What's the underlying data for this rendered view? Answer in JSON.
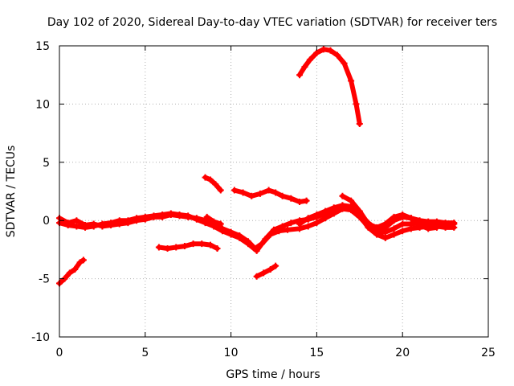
{
  "chart_data": {
    "type": "scatter",
    "title": "Day 102 of 2020, Sidereal Day-to-day VTEC variation (SDTVAR) for receiver ters",
    "xlabel": "GPS time / hours",
    "ylabel": "SDTVAR / TECUs",
    "xlim": [
      0,
      25
    ],
    "ylim": [
      -10,
      15
    ],
    "xticks": [
      "0",
      "5",
      "10",
      "15",
      "20",
      "25"
    ],
    "yticks": [
      "-10",
      "-5",
      "0",
      "5",
      "10",
      "15"
    ],
    "grid": true,
    "series_color": "#ff0000",
    "series": [
      {
        "name": "trace-a",
        "points": [
          [
            0,
            0.2
          ],
          [
            0.5,
            -0.2
          ],
          [
            1,
            0
          ],
          [
            1.5,
            -0.4
          ],
          [
            2,
            -0.3
          ],
          [
            2.5,
            -0.5
          ],
          [
            3,
            -0.4
          ],
          [
            3.5,
            -0.3
          ],
          [
            4,
            -0.2
          ],
          [
            4.5,
            0
          ],
          [
            5,
            0.1
          ],
          [
            5.5,
            0.3
          ],
          [
            6,
            0.3
          ],
          [
            6.5,
            0.5
          ],
          [
            7,
            0.4
          ],
          [
            7.5,
            0.3
          ],
          [
            8,
            0.2
          ],
          [
            8.5,
            0
          ],
          [
            9,
            -0.3
          ],
          [
            9.5,
            -0.7
          ],
          [
            10,
            -1
          ],
          [
            10.5,
            -1.3
          ],
          [
            11,
            -1.8
          ],
          [
            11.4,
            -2.4
          ],
          [
            11.8,
            -2
          ],
          [
            12.3,
            -1.2
          ],
          [
            12.8,
            -0.9
          ],
          [
            13.3,
            -0.8
          ],
          [
            14,
            -0.7
          ],
          [
            14.5,
            -0.5
          ],
          [
            15,
            -0.2
          ],
          [
            15.5,
            0.2
          ],
          [
            16,
            0.6
          ],
          [
            16.5,
            1
          ],
          [
            17,
            0.9
          ],
          [
            17.5,
            0.3
          ],
          [
            18,
            -0.5
          ],
          [
            18.5,
            -1
          ],
          [
            19,
            -1
          ],
          [
            19.5,
            -0.7
          ],
          [
            20,
            -0.3
          ],
          [
            20.5,
            -0.3
          ],
          [
            21,
            -0.2
          ],
          [
            21.5,
            -0.2
          ],
          [
            22,
            -0.4
          ],
          [
            22.5,
            -0.3
          ],
          [
            23,
            -0.3
          ]
        ]
      },
      {
        "name": "trace-b",
        "points": [
          [
            0,
            -0.2
          ],
          [
            0.5,
            -0.4
          ],
          [
            1,
            -0.5
          ],
          [
            1.5,
            -0.6
          ],
          [
            2,
            -0.5
          ],
          [
            2.5,
            -0.3
          ],
          [
            3,
            -0.2
          ],
          [
            3.5,
            0
          ],
          [
            4,
            0
          ],
          [
            4.5,
            0.2
          ],
          [
            5,
            0.3
          ],
          [
            5.5,
            0.4
          ],
          [
            6,
            0.5
          ],
          [
            6.5,
            0.6
          ],
          [
            7,
            0.5
          ],
          [
            7.5,
            0.4
          ],
          [
            8,
            0.1
          ],
          [
            8.5,
            -0.2
          ],
          [
            9,
            -0.5
          ],
          [
            9.5,
            -0.9
          ],
          [
            10,
            -1.2
          ],
          [
            10.5,
            -1.5
          ],
          [
            11,
            -2
          ],
          [
            11.5,
            -2.6
          ],
          [
            12,
            -1.6
          ],
          [
            12.5,
            -0.8
          ],
          [
            13,
            -0.5
          ],
          [
            13.5,
            -0.2
          ],
          [
            14,
            0
          ],
          [
            14.5,
            0.1
          ],
          [
            15,
            0.3
          ],
          [
            15.5,
            0.6
          ],
          [
            16,
            1
          ],
          [
            16.5,
            1.3
          ],
          [
            17,
            1.2
          ],
          [
            17.5,
            0.6
          ],
          [
            18,
            -0.2
          ],
          [
            18.5,
            -0.8
          ],
          [
            19,
            -0.6
          ],
          [
            19.5,
            0
          ],
          [
            20,
            0.3
          ],
          [
            20.5,
            0.2
          ],
          [
            21,
            0
          ],
          [
            21.5,
            -0.1
          ],
          [
            22,
            -0.1
          ],
          [
            22.5,
            -0.2
          ],
          [
            23,
            -0.2
          ]
        ]
      },
      {
        "name": "trace-c",
        "points": [
          [
            14,
            -0.3
          ],
          [
            14.5,
            0.2
          ],
          [
            15,
            0.5
          ],
          [
            15.5,
            0.8
          ],
          [
            16,
            1.1
          ],
          [
            16.5,
            1.3
          ],
          [
            17,
            1.1
          ],
          [
            17.5,
            0.4
          ],
          [
            18,
            -0.6
          ],
          [
            18.5,
            -1.2
          ],
          [
            19,
            -1.5
          ],
          [
            19.5,
            -1.2
          ],
          [
            20,
            -0.9
          ],
          [
            20.5,
            -0.7
          ],
          [
            21,
            -0.6
          ],
          [
            21.5,
            -0.5
          ],
          [
            22,
            -0.5
          ],
          [
            22.5,
            -0.6
          ],
          [
            23,
            -0.6
          ]
        ]
      },
      {
        "name": "trace-d",
        "points": [
          [
            16.5,
            2.1
          ],
          [
            17,
            1.7
          ],
          [
            17.5,
            0.8
          ],
          [
            18,
            -0.3
          ],
          [
            18.5,
            -0.6
          ],
          [
            19,
            -0.3
          ],
          [
            19.5,
            0.3
          ],
          [
            20,
            0.5
          ],
          [
            20.5,
            0.2
          ],
          [
            21,
            -0.4
          ],
          [
            21.5,
            -0.7
          ],
          [
            22,
            -0.6
          ]
        ]
      },
      {
        "name": "arc-high",
        "points": [
          [
            14,
            12.5
          ],
          [
            14.3,
            13.2
          ],
          [
            14.6,
            13.8
          ],
          [
            15,
            14.4
          ],
          [
            15.4,
            14.7
          ],
          [
            15.8,
            14.6
          ],
          [
            16.2,
            14.2
          ],
          [
            16.6,
            13.5
          ],
          [
            17,
            12
          ],
          [
            17.3,
            10
          ],
          [
            17.5,
            8.3
          ]
        ]
      },
      {
        "name": "segment-mid-a",
        "points": [
          [
            8.5,
            3.7
          ],
          [
            8.8,
            3.5
          ],
          [
            9.1,
            3.1
          ],
          [
            9.4,
            2.6
          ]
        ]
      },
      {
        "name": "segment-mid-b",
        "points": [
          [
            10.2,
            2.6
          ],
          [
            10.7,
            2.4
          ],
          [
            11.2,
            2.1
          ],
          [
            11.7,
            2.3
          ],
          [
            12.2,
            2.6
          ],
          [
            12.6,
            2.4
          ],
          [
            13.0,
            2.1
          ],
          [
            13.5,
            1.9
          ],
          [
            14.0,
            1.6
          ],
          [
            14.4,
            1.7
          ]
        ]
      },
      {
        "name": "segment-low-a",
        "points": [
          [
            5.8,
            -2.3
          ],
          [
            6.3,
            -2.4
          ],
          [
            6.8,
            -2.3
          ],
          [
            7.3,
            -2.2
          ],
          [
            7.8,
            -2.0
          ],
          [
            8.3,
            -2.0
          ],
          [
            8.8,
            -2.1
          ],
          [
            9.2,
            -2.4
          ]
        ]
      },
      {
        "name": "segment-low-b",
        "points": [
          [
            0,
            -5.4
          ],
          [
            0.3,
            -5
          ],
          [
            0.6,
            -4.5
          ],
          [
            0.9,
            -4.2
          ],
          [
            1.2,
            -3.6
          ],
          [
            1.4,
            -3.4
          ]
        ]
      },
      {
        "name": "segment-low-c",
        "points": [
          [
            11.5,
            -4.8
          ],
          [
            11.9,
            -4.5
          ],
          [
            12.3,
            -4.2
          ],
          [
            12.6,
            -3.9
          ]
        ]
      },
      {
        "name": "segment-short",
        "points": [
          [
            8.6,
            0.3
          ],
          [
            9,
            -0.1
          ],
          [
            9.4,
            -0.3
          ]
        ]
      }
    ]
  }
}
